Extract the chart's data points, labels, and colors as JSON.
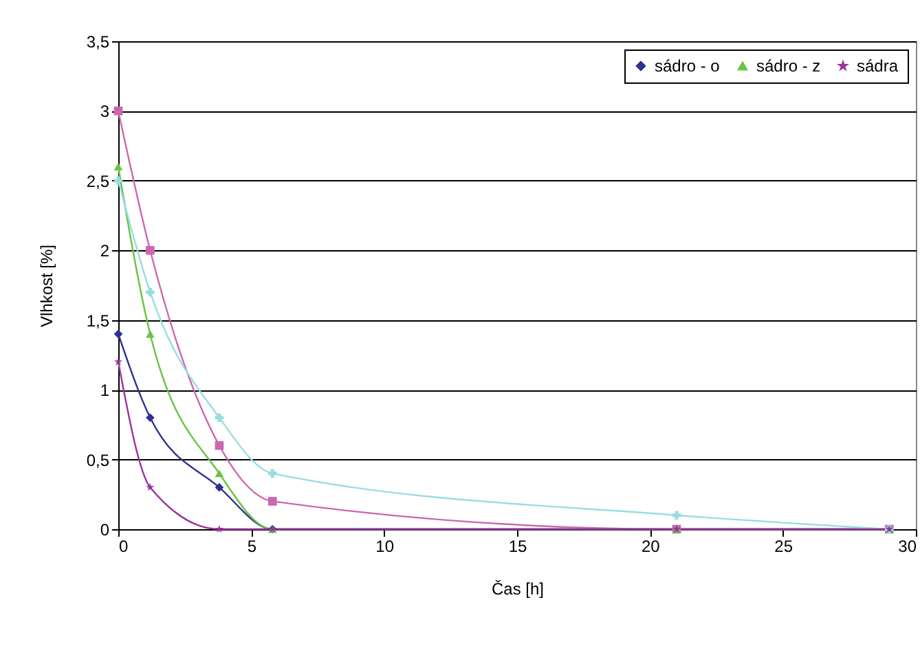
{
  "chart_data": {
    "type": "line",
    "xlabel": "Čas [h]",
    "ylabel": "Vlhkost [%]",
    "x": [
      0,
      1.2,
      3.8,
      5.8,
      21,
      29
    ],
    "series": [
      {
        "name": "sádro - o",
        "color": "#2e3192",
        "marker": "diamond",
        "values": [
          1.4,
          0.8,
          0.3,
          0,
          0,
          0
        ]
      },
      {
        "color": "#cc66b0",
        "marker": "square",
        "values": [
          3,
          2,
          0.6,
          0.2,
          0,
          0
        ]
      },
      {
        "name": "sádro - z",
        "color": "#66c442",
        "marker": "triangle",
        "values": [
          2.6,
          1.4,
          0.4,
          0,
          0,
          0
        ]
      },
      {
        "color": "#99dde0",
        "marker": "cross",
        "values": [
          2.5,
          1.7,
          0.8,
          0.4,
          0.1,
          0
        ]
      },
      {
        "name": "sádra",
        "color": "#993399",
        "marker": "star",
        "values": [
          1.2,
          0.3,
          0,
          0,
          0,
          0
        ]
      }
    ],
    "xlim": [
      0,
      30
    ],
    "xticks": [
      0,
      5,
      10,
      15,
      20,
      25,
      30
    ],
    "ylim": [
      0,
      3.5
    ],
    "yticks": [
      0,
      {
        "value": 0.5,
        "label": "0,5"
      },
      1,
      {
        "value": 1.5,
        "label": "1,5"
      },
      2,
      {
        "value": 2.5,
        "label": "2,5"
      },
      3,
      {
        "value": 3.5,
        "label": "3,5"
      }
    ],
    "grid": "y",
    "legend": "top right"
  }
}
